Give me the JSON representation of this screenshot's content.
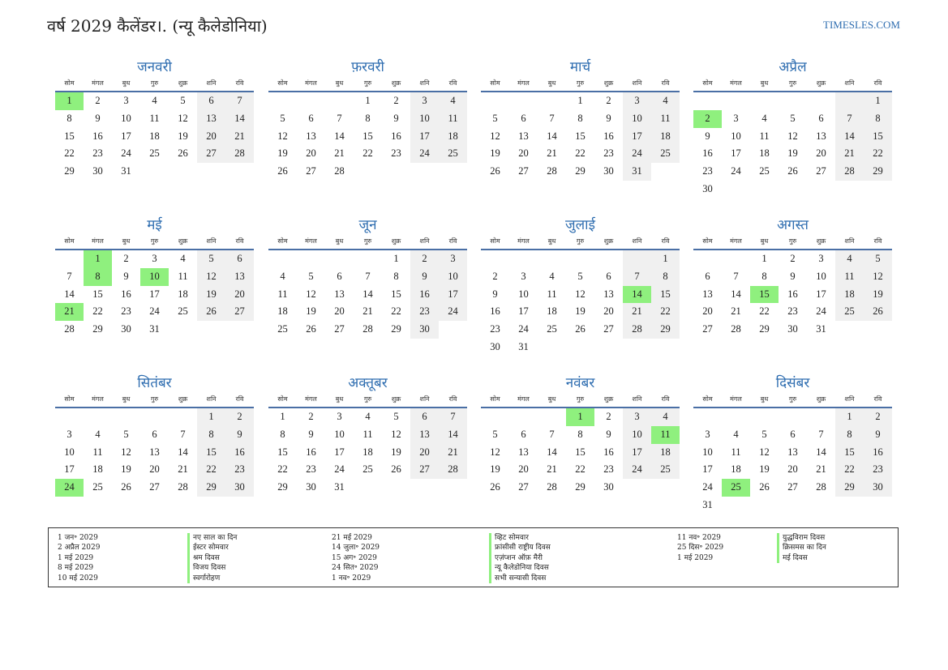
{
  "title": "वर्ष 2029 कैलेंडर।. (न्यू कैलेडोनिया)",
  "site": "TIMESLES.COM",
  "weekday_labels": [
    "सोम",
    "मंगल",
    "बुध",
    "गुरु",
    "शुक्र",
    "शनि",
    "रवि"
  ],
  "months": [
    {
      "name": "जनवरी",
      "offset": 0,
      "days": 31,
      "holidays": [
        1
      ]
    },
    {
      "name": "फ़रवरी",
      "offset": 3,
      "days": 28,
      "holidays": []
    },
    {
      "name": "मार्च",
      "offset": 3,
      "days": 31,
      "holidays": []
    },
    {
      "name": "अप्रैल",
      "offset": 6,
      "days": 30,
      "holidays": [
        2
      ]
    },
    {
      "name": "मई",
      "offset": 1,
      "days": 31,
      "holidays": [
        1,
        8,
        10,
        21
      ]
    },
    {
      "name": "जून",
      "offset": 4,
      "days": 30,
      "holidays": []
    },
    {
      "name": "जुलाई",
      "offset": 6,
      "days": 31,
      "holidays": [
        14
      ]
    },
    {
      "name": "अगस्त",
      "offset": 2,
      "days": 31,
      "holidays": [
        15
      ]
    },
    {
      "name": "सितंबर",
      "offset": 5,
      "days": 30,
      "holidays": [
        24
      ]
    },
    {
      "name": "अक्तूबर",
      "offset": 0,
      "days": 31,
      "holidays": []
    },
    {
      "name": "नवंबर",
      "offset": 3,
      "days": 30,
      "holidays": [
        1,
        11
      ]
    },
    {
      "name": "दिसंबर",
      "offset": 5,
      "days": 31,
      "holidays": [
        25
      ]
    }
  ],
  "legend": [
    [
      {
        "date": "1 जन॰ 2029",
        "name": "नए साल का दिन"
      },
      {
        "date": "2 अप्रैल 2029",
        "name": "ईस्टर सोमवार"
      },
      {
        "date": "1 मई 2029",
        "name": "श्रम दिवस"
      },
      {
        "date": "8 मई 2029",
        "name": "विजय दिवस"
      },
      {
        "date": "10 मई 2029",
        "name": "स्वर्गारोहण"
      }
    ],
    [
      {
        "date": "21 मई 2029",
        "name": "व्हिट सोमवार"
      },
      {
        "date": "14 जुला॰ 2029",
        "name": "फ्रांसीसी राष्ट्रीय दिवस"
      },
      {
        "date": "15 अग॰ 2029",
        "name": "एज़ंप्शन ऑफ़ मैरी"
      },
      {
        "date": "24 सित॰ 2029",
        "name": "न्यू कैलेडोनिया दिवस"
      },
      {
        "date": "1 नव॰ 2029",
        "name": "सभी सन्यासी दिवस"
      }
    ],
    [
      {
        "date": "11 नव॰ 2029",
        "name": "युद्धविराम दिवस"
      },
      {
        "date": "25 दिस॰ 2029",
        "name": "क्रिसमस का दिन"
      },
      {
        "date": "1 मई 2029",
        "name": "मई दिवस"
      }
    ]
  ]
}
